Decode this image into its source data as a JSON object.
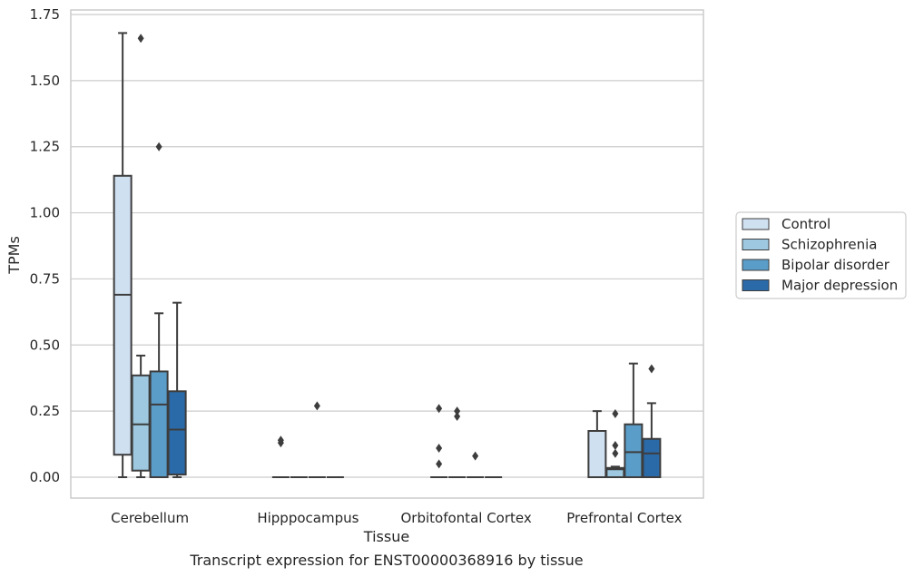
{
  "chart_data": {
    "type": "box",
    "title": "Transcript expression for ENST00000368916 by tissue",
    "xlabel": "Tissue",
    "ylabel": "TPMs",
    "ylim": [
      -0.08,
      1.76
    ],
    "yticks": [
      "0.00",
      "0.25",
      "0.50",
      "0.75",
      "1.00",
      "1.25",
      "1.50",
      "1.75"
    ],
    "categories": [
      "Cerebellum",
      "Hipppocampus",
      "Orbitofontal Cortex",
      "Prefrontal Cortex"
    ],
    "grid": "horizontal",
    "legend_position": "right",
    "series": [
      {
        "name": "Control",
        "color": "#cfe0f1",
        "boxes": [
          {
            "whislo": 0.0,
            "q1": 0.085,
            "med": 0.69,
            "q3": 1.14,
            "whishi": 1.68,
            "fliers": []
          },
          {
            "whislo": 0.0,
            "q1": 0.0,
            "med": 0.0,
            "q3": 0.0,
            "whishi": 0.0,
            "fliers": [
              0.13,
              0.14
            ]
          },
          {
            "whislo": 0.0,
            "q1": 0.0,
            "med": 0.0,
            "q3": 0.0,
            "whishi": 0.0,
            "fliers": [
              0.05,
              0.11,
              0.26
            ]
          },
          {
            "whislo": 0.0,
            "q1": 0.0,
            "med": 0.0,
            "q3": 0.175,
            "whishi": 0.25,
            "fliers": []
          }
        ]
      },
      {
        "name": "Schizophrenia",
        "color": "#9dc8e0",
        "boxes": [
          {
            "whislo": 0.0,
            "q1": 0.025,
            "med": 0.2,
            "q3": 0.385,
            "whishi": 0.46,
            "fliers": [
              1.66
            ]
          },
          {
            "whislo": 0.0,
            "q1": 0.0,
            "med": 0.0,
            "q3": 0.0,
            "whishi": 0.0,
            "fliers": []
          },
          {
            "whislo": 0.0,
            "q1": 0.0,
            "med": 0.0,
            "q3": 0.0,
            "whishi": 0.0,
            "fliers": [
              0.23,
              0.25
            ]
          },
          {
            "whislo": 0.0,
            "q1": 0.0,
            "med": 0.03,
            "q3": 0.035,
            "whishi": 0.04,
            "fliers": [
              0.09,
              0.12,
              0.24
            ]
          }
        ]
      },
      {
        "name": "Bipolar disorder",
        "color": "#5a9dc8",
        "boxes": [
          {
            "whislo": 0.0,
            "q1": 0.0,
            "med": 0.275,
            "q3": 0.4,
            "whishi": 0.62,
            "fliers": [
              1.25
            ]
          },
          {
            "whislo": 0.0,
            "q1": 0.0,
            "med": 0.0,
            "q3": 0.0,
            "whishi": 0.0,
            "fliers": [
              0.27
            ]
          },
          {
            "whislo": 0.0,
            "q1": 0.0,
            "med": 0.0,
            "q3": 0.0,
            "whishi": 0.0,
            "fliers": [
              0.08
            ]
          },
          {
            "whislo": 0.0,
            "q1": 0.0,
            "med": 0.095,
            "q3": 0.2,
            "whishi": 0.43,
            "fliers": []
          }
        ]
      },
      {
        "name": "Major depression",
        "color": "#2b6aa8",
        "boxes": [
          {
            "whislo": 0.0,
            "q1": 0.01,
            "med": 0.18,
            "q3": 0.325,
            "whishi": 0.66,
            "fliers": []
          },
          {
            "whislo": 0.0,
            "q1": 0.0,
            "med": 0.0,
            "q3": 0.0,
            "whishi": 0.0,
            "fliers": []
          },
          {
            "whislo": 0.0,
            "q1": 0.0,
            "med": 0.0,
            "q3": 0.0,
            "whishi": 0.0,
            "fliers": []
          },
          {
            "whislo": 0.0,
            "q1": 0.0,
            "med": 0.09,
            "q3": 0.145,
            "whishi": 0.28,
            "fliers": [
              0.41
            ]
          }
        ]
      }
    ]
  }
}
